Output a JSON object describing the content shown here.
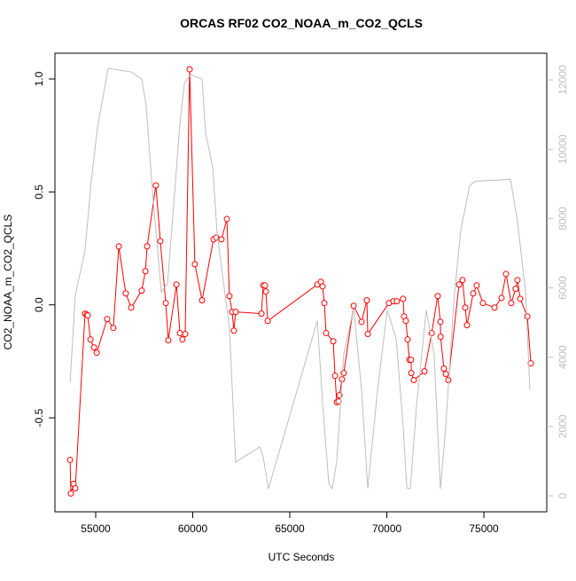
{
  "chart_data": {
    "type": "line",
    "title": "ORCAS RF02 CO2_NOAA_m_CO2_QCLS",
    "xlabel": "UTC Seconds",
    "ylabel": "CO2_NOAA_m_CO2_QCLS",
    "xlim": [
      52900,
      78240
    ],
    "xticks": [
      55000,
      60000,
      65000,
      70000,
      75000
    ],
    "ylim": [
      -0.916,
      1.114
    ],
    "yticks": [
      -0.5,
      {
        "value": 0,
        "label": "0.0"
      },
      0.5,
      {
        "value": 1,
        "label": "1.0"
      }
    ],
    "y2lim": [
      -460,
      12770
    ],
    "y2ticks": [
      0,
      2000,
      4000,
      6000,
      8000,
      10000,
      12000
    ],
    "y2color": "#bebebe",
    "series": [
      {
        "color": "#ff0000",
        "marker": "circle",
        "x": [
          53680,
          53720,
          53860,
          53950,
          54450,
          54540,
          54590,
          54730,
          54910,
          55050,
          55590,
          55910,
          56190,
          56550,
          56830,
          57370,
          57560,
          57650,
          58100,
          58330,
          58610,
          58740,
          59160,
          59340,
          59470,
          59610,
          59840,
          60110,
          60480,
          61070,
          61210,
          61480,
          61760,
          61890,
          62030,
          62120,
          62210,
          63540,
          63630,
          63720,
          63770,
          63860,
          66420,
          66600,
          66690,
          66780,
          66870,
          67240,
          67330,
          67420,
          67510,
          67560,
          67690,
          67780,
          68290,
          68700,
          68970,
          69020,
          70110,
          70340,
          70520,
          70840,
          70890,
          70980,
          71070,
          71160,
          71250,
          71260,
          71390,
          71940,
          72310,
          72620,
          72760,
          72770,
          72940,
          73040,
          73170,
          73720,
          73900,
          74040,
          74130,
          74450,
          74630,
          74950,
          75550,
          75910,
          76140,
          76410,
          76640,
          76730,
          76870,
          77240,
          77420
        ],
        "values": [
          -0.686,
          -0.835,
          -0.792,
          -0.812,
          -0.039,
          -0.043,
          -0.047,
          -0.153,
          -0.188,
          -0.212,
          -0.063,
          -0.102,
          0.259,
          0.051,
          -0.012,
          0.063,
          0.149,
          0.259,
          0.529,
          0.282,
          0.008,
          -0.157,
          0.09,
          -0.125,
          -0.153,
          -0.129,
          1.043,
          0.18,
          0.02,
          0.29,
          0.298,
          0.29,
          0.38,
          0.039,
          -0.031,
          -0.114,
          -0.031,
          -0.039,
          0.086,
          0.086,
          0.059,
          -0.071,
          0.09,
          0.102,
          0.082,
          0.008,
          -0.125,
          -0.161,
          -0.314,
          -0.431,
          -0.427,
          -0.4,
          -0.329,
          -0.302,
          -0.004,
          -0.075,
          0.02,
          -0.129,
          0.008,
          0.016,
          0.016,
          0.027,
          -0.051,
          -0.071,
          -0.153,
          -0.243,
          -0.243,
          -0.302,
          -0.333,
          -0.294,
          -0.125,
          0.039,
          -0.075,
          -0.141,
          -0.282,
          -0.306,
          -0.333,
          0.09,
          0.11,
          -0.012,
          -0.09,
          0.051,
          0.086,
          0.008,
          -0.012,
          0.031,
          0.137,
          0.008,
          0.071,
          0.11,
          0.027,
          -0.051,
          -0.259
        ]
      },
      {
        "color": "#bebebe",
        "axis": "y2",
        "x": [
          53680,
          53950,
          54450,
          54770,
          55090,
          55640,
          56830,
          57370,
          57600,
          57920,
          58380,
          58700,
          59060,
          59340,
          59570,
          59890,
          60480,
          60660,
          61030,
          61260,
          61890,
          62210,
          63450,
          63630,
          63900,
          66420,
          66690,
          67010,
          67190,
          67420,
          67780,
          68290,
          68700,
          69020,
          69520,
          70020,
          70480,
          70840,
          71030,
          71210,
          71530,
          72030,
          72440,
          72760,
          73040,
          73450,
          73810,
          74270,
          74540,
          76370,
          76730,
          77150,
          77370
        ],
        "values": [
          3256,
          5795,
          7077,
          9077,
          10615,
          12333,
          12231,
          12026,
          11256,
          8820,
          5872,
          6128,
          8692,
          10743,
          11897,
          12154,
          12026,
          10487,
          9461,
          7538,
          4846,
          974,
          1410,
          1128,
          205,
          5051,
          2667,
          359,
          205,
          1000,
          4077,
          5410,
          3051,
          205,
          3051,
          5359,
          4538,
          2026,
          231,
          205,
          2590,
          5359,
          4077,
          205,
          2026,
          5615,
          7667,
          8949,
          9077,
          9128,
          7923,
          5872,
          3051
        ]
      }
    ]
  }
}
